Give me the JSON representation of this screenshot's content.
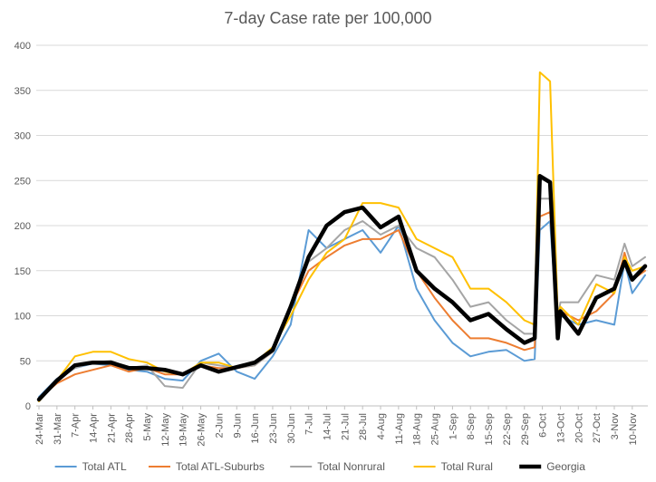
{
  "chart_data": {
    "type": "line",
    "title": "7-day Case rate per 100,000",
    "xlabel": "",
    "ylabel": "",
    "ylim": [
      0,
      400
    ],
    "yticks": [
      0,
      50,
      100,
      150,
      200,
      250,
      300,
      350,
      400
    ],
    "grid": true,
    "legend_position": "bottom",
    "categories": [
      "24-Mar",
      "31-Mar",
      "7-Apr",
      "14-Apr",
      "21-Apr",
      "28-Apr",
      "5-May",
      "12-May",
      "19-May",
      "26-May",
      "2-Jun",
      "9-Jun",
      "16-Jun",
      "23-Jun",
      "30-Jun",
      "7-Jul",
      "14-Jul",
      "21-Jul",
      "28-Jul",
      "4-Aug",
      "11-Aug",
      "18-Aug",
      "25-Aug",
      "1-Sep",
      "8-Sep",
      "15-Sep",
      "22-Sep",
      "29-Sep",
      "6-Oct",
      "13-Oct",
      "20-Oct",
      "27-Oct",
      "3-Nov",
      "10-Nov"
    ],
    "x_end": "15-Nov",
    "series": [
      {
        "name": "Total ATL",
        "color": "#5B9BD5",
        "width": 2,
        "points": [
          [
            "24-Mar",
            10
          ],
          [
            "31-Mar",
            30
          ],
          [
            "7-Apr",
            42
          ],
          [
            "14-Apr",
            47
          ],
          [
            "21-Apr",
            45
          ],
          [
            "28-Apr",
            40
          ],
          [
            "5-May",
            38
          ],
          [
            "12-May",
            30
          ],
          [
            "19-May",
            28
          ],
          [
            "26-May",
            50
          ],
          [
            "2-Jun",
            58
          ],
          [
            "9-Jun",
            38
          ],
          [
            "16-Jun",
            30
          ],
          [
            "23-Jun",
            55
          ],
          [
            "30-Jun",
            90
          ],
          [
            "7-Jul",
            195
          ],
          [
            "14-Jul",
            175
          ],
          [
            "21-Jul",
            185
          ],
          [
            "28-Jul",
            195
          ],
          [
            "4-Aug",
            170
          ],
          [
            "11-Aug",
            200
          ],
          [
            "18-Aug",
            130
          ],
          [
            "25-Aug",
            95
          ],
          [
            "1-Sep",
            70
          ],
          [
            "8-Sep",
            55
          ],
          [
            "15-Sep",
            60
          ],
          [
            "22-Sep",
            62
          ],
          [
            "29-Sep",
            50
          ],
          [
            "3-Oct",
            52
          ],
          [
            "5-Oct",
            195
          ],
          [
            "9-Oct",
            205
          ],
          [
            "12-Oct",
            80
          ],
          [
            "13-Oct",
            100
          ],
          [
            "20-Oct",
            90
          ],
          [
            "27-Oct",
            95
          ],
          [
            "3-Nov",
            90
          ],
          [
            "7-Nov",
            160
          ],
          [
            "10-Nov",
            125
          ],
          [
            "15-Nov",
            145
          ]
        ]
      },
      {
        "name": "Total ATL-Suburbs",
        "color": "#ED7D31",
        "width": 2,
        "points": [
          [
            "24-Mar",
            8
          ],
          [
            "31-Mar",
            25
          ],
          [
            "7-Apr",
            35
          ],
          [
            "14-Apr",
            40
          ],
          [
            "21-Apr",
            45
          ],
          [
            "28-Apr",
            38
          ],
          [
            "5-May",
            42
          ],
          [
            "12-May",
            35
          ],
          [
            "19-May",
            35
          ],
          [
            "26-May",
            45
          ],
          [
            "2-Jun",
            42
          ],
          [
            "9-Jun",
            42
          ],
          [
            "16-Jun",
            45
          ],
          [
            "23-Jun",
            60
          ],
          [
            "30-Jun",
            110
          ],
          [
            "7-Jul",
            150
          ],
          [
            "14-Jul",
            165
          ],
          [
            "21-Jul",
            178
          ],
          [
            "28-Jul",
            185
          ],
          [
            "4-Aug",
            185
          ],
          [
            "11-Aug",
            195
          ],
          [
            "18-Aug",
            150
          ],
          [
            "25-Aug",
            120
          ],
          [
            "1-Sep",
            95
          ],
          [
            "8-Sep",
            75
          ],
          [
            "15-Sep",
            75
          ],
          [
            "22-Sep",
            70
          ],
          [
            "29-Sep",
            62
          ],
          [
            "3-Oct",
            65
          ],
          [
            "5-Oct",
            210
          ],
          [
            "9-Oct",
            215
          ],
          [
            "12-Oct",
            95
          ],
          [
            "13-Oct",
            105
          ],
          [
            "20-Oct",
            95
          ],
          [
            "27-Oct",
            105
          ],
          [
            "3-Nov",
            125
          ],
          [
            "7-Nov",
            170
          ],
          [
            "10-Nov",
            140
          ],
          [
            "15-Nov",
            150
          ]
        ]
      },
      {
        "name": "Total Nonrural",
        "color": "#A5A5A5",
        "width": 2,
        "points": [
          [
            "24-Mar",
            9
          ],
          [
            "31-Mar",
            28
          ],
          [
            "7-Apr",
            42
          ],
          [
            "14-Apr",
            48
          ],
          [
            "21-Apr",
            50
          ],
          [
            "28-Apr",
            42
          ],
          [
            "5-May",
            45
          ],
          [
            "12-May",
            22
          ],
          [
            "19-May",
            20
          ],
          [
            "26-May",
            48
          ],
          [
            "2-Jun",
            45
          ],
          [
            "9-Jun",
            42
          ],
          [
            "16-Jun",
            45
          ],
          [
            "23-Jun",
            60
          ],
          [
            "30-Jun",
            110
          ],
          [
            "7-Jul",
            160
          ],
          [
            "14-Jul",
            175
          ],
          [
            "21-Jul",
            195
          ],
          [
            "28-Jul",
            205
          ],
          [
            "4-Aug",
            190
          ],
          [
            "11-Aug",
            200
          ],
          [
            "18-Aug",
            175
          ],
          [
            "25-Aug",
            165
          ],
          [
            "1-Sep",
            140
          ],
          [
            "8-Sep",
            110
          ],
          [
            "15-Sep",
            115
          ],
          [
            "22-Sep",
            95
          ],
          [
            "29-Sep",
            80
          ],
          [
            "3-Oct",
            80
          ],
          [
            "5-Oct",
            230
          ],
          [
            "9-Oct",
            230
          ],
          [
            "12-Oct",
            95
          ],
          [
            "13-Oct",
            115
          ],
          [
            "20-Oct",
            115
          ],
          [
            "27-Oct",
            145
          ],
          [
            "3-Nov",
            140
          ],
          [
            "7-Nov",
            180
          ],
          [
            "10-Nov",
            155
          ],
          [
            "15-Nov",
            165
          ]
        ]
      },
      {
        "name": "Total Rural",
        "color": "#FFC000",
        "width": 2,
        "points": [
          [
            "24-Mar",
            5
          ],
          [
            "31-Mar",
            28
          ],
          [
            "7-Apr",
            55
          ],
          [
            "14-Apr",
            60
          ],
          [
            "21-Apr",
            60
          ],
          [
            "28-Apr",
            52
          ],
          [
            "5-May",
            48
          ],
          [
            "12-May",
            38
          ],
          [
            "19-May",
            35
          ],
          [
            "26-May",
            48
          ],
          [
            "2-Jun",
            48
          ],
          [
            "9-Jun",
            42
          ],
          [
            "16-Jun",
            48
          ],
          [
            "23-Jun",
            65
          ],
          [
            "30-Jun",
            100
          ],
          [
            "7-Jul",
            140
          ],
          [
            "14-Jul",
            170
          ],
          [
            "21-Jul",
            185
          ],
          [
            "28-Jul",
            225
          ],
          [
            "4-Aug",
            225
          ],
          [
            "11-Aug",
            220
          ],
          [
            "18-Aug",
            185
          ],
          [
            "25-Aug",
            175
          ],
          [
            "1-Sep",
            165
          ],
          [
            "8-Sep",
            130
          ],
          [
            "15-Sep",
            130
          ],
          [
            "22-Sep",
            115
          ],
          [
            "29-Sep",
            95
          ],
          [
            "3-Oct",
            90
          ],
          [
            "5-Oct",
            370
          ],
          [
            "9-Oct",
            360
          ],
          [
            "12-Oct",
            100
          ],
          [
            "13-Oct",
            110
          ],
          [
            "20-Oct",
            90
          ],
          [
            "27-Oct",
            135
          ],
          [
            "3-Nov",
            125
          ],
          [
            "7-Nov",
            165
          ],
          [
            "10-Nov",
            150
          ],
          [
            "15-Nov",
            155
          ]
        ]
      },
      {
        "name": "Georgia",
        "color": "#000000",
        "width": 4.5,
        "points": [
          [
            "24-Mar",
            7
          ],
          [
            "31-Mar",
            28
          ],
          [
            "7-Apr",
            45
          ],
          [
            "14-Apr",
            48
          ],
          [
            "21-Apr",
            48
          ],
          [
            "28-Apr",
            42
          ],
          [
            "5-May",
            42
          ],
          [
            "12-May",
            40
          ],
          [
            "19-May",
            35
          ],
          [
            "26-May",
            45
          ],
          [
            "2-Jun",
            38
          ],
          [
            "9-Jun",
            43
          ],
          [
            "16-Jun",
            48
          ],
          [
            "23-Jun",
            62
          ],
          [
            "30-Jun",
            110
          ],
          [
            "7-Jul",
            165
          ],
          [
            "14-Jul",
            200
          ],
          [
            "21-Jul",
            215
          ],
          [
            "28-Jul",
            220
          ],
          [
            "4-Aug",
            198
          ],
          [
            "11-Aug",
            210
          ],
          [
            "18-Aug",
            150
          ],
          [
            "25-Aug",
            130
          ],
          [
            "1-Sep",
            115
          ],
          [
            "8-Sep",
            95
          ],
          [
            "15-Sep",
            102
          ],
          [
            "22-Sep",
            85
          ],
          [
            "29-Sep",
            70
          ],
          [
            "3-Oct",
            75
          ],
          [
            "5-Oct",
            255
          ],
          [
            "9-Oct",
            248
          ],
          [
            "12-Oct",
            75
          ],
          [
            "13-Oct",
            105
          ],
          [
            "20-Oct",
            80
          ],
          [
            "27-Oct",
            120
          ],
          [
            "3-Nov",
            130
          ],
          [
            "7-Nov",
            160
          ],
          [
            "10-Nov",
            140
          ],
          [
            "15-Nov",
            155
          ]
        ]
      }
    ]
  }
}
